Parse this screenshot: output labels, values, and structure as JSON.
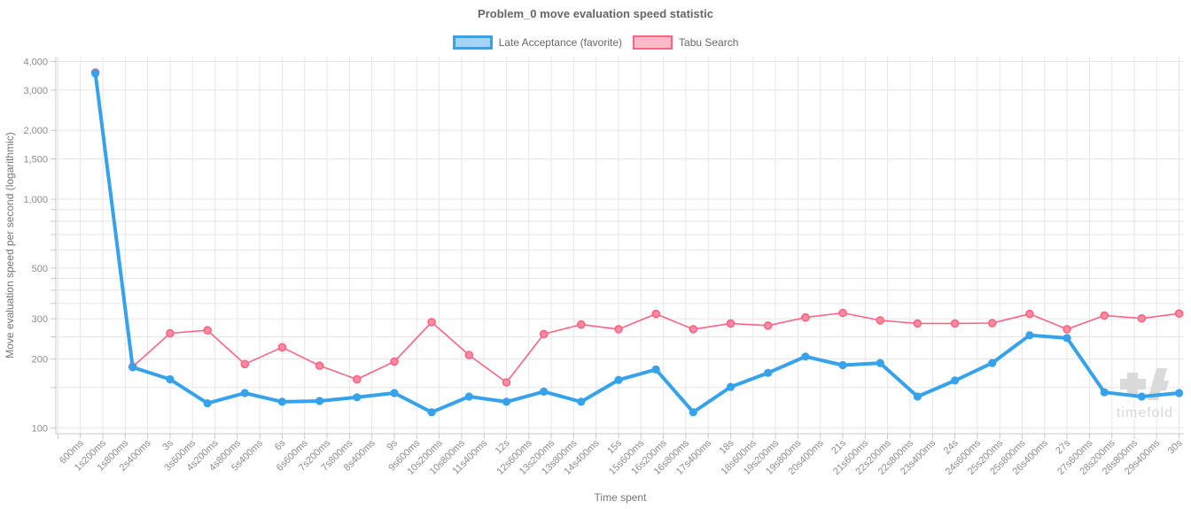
{
  "watermark": {
    "text": "timefold"
  },
  "legend": [
    {
      "label": "Late Acceptance (favorite)",
      "color": "#36A2EB",
      "fill": "rgba(54,162,235,0.45)",
      "border_width": 3
    },
    {
      "label": "Tabu Search",
      "color": "#FF6384",
      "fill": "rgba(255,99,132,0.45)",
      "border_width": 2
    }
  ],
  "chart_data": {
    "type": "line",
    "title": "Problem_0 move evaluation speed statistic",
    "xlabel": "Time spent",
    "ylabel": "Move evaluation speed per second (logarithmic)",
    "grid": true,
    "legend_position": "top",
    "x_axis": {
      "tick_interval_ms": 600,
      "range_ms": [
        0,
        30100
      ],
      "tick_labels": [
        "600ms",
        "1s200ms",
        "1s800ms",
        "2s400ms",
        "3s",
        "3s600ms",
        "4s200ms",
        "4s800ms",
        "5s400ms",
        "6s",
        "6s600ms",
        "7s200ms",
        "7s800ms",
        "8s400ms",
        "9s",
        "9s600ms",
        "10s200ms",
        "10s800ms",
        "11s400ms",
        "12s",
        "12s600ms",
        "13s200ms",
        "13s800ms",
        "14s400ms",
        "15s",
        "15s600ms",
        "16s200ms",
        "16s800ms",
        "17s400ms",
        "18s",
        "18s600ms",
        "19s200ms",
        "19s800ms",
        "20s400ms",
        "21s",
        "21s600ms",
        "22s200ms",
        "22s800ms",
        "23s400ms",
        "24s",
        "24s600ms",
        "25s200ms",
        "25s800ms",
        "26s400ms",
        "27s",
        "27s600ms",
        "28s200ms",
        "28s800ms",
        "29s400ms",
        "30s"
      ]
    },
    "y_axis": {
      "scale": "logarithmic",
      "range": [
        100,
        4000
      ],
      "labeled_ticks": [
        {
          "value": 4000,
          "label": "4,000"
        },
        {
          "value": 3000,
          "label": "3,000"
        },
        {
          "value": 2000,
          "label": "2,000"
        },
        {
          "value": 1500,
          "label": "1,500"
        },
        {
          "value": 1000,
          "label": "1,000"
        },
        {
          "value": 500,
          "label": "500"
        },
        {
          "value": 300,
          "label": "300"
        },
        {
          "value": 200,
          "label": "200"
        },
        {
          "value": 100,
          "label": "100"
        }
      ],
      "minor_gridlines": [
        900,
        800,
        700,
        600,
        450,
        400,
        350,
        250,
        150
      ]
    },
    "sample_interval_s": 1,
    "x_seconds": [
      1,
      2,
      3,
      4,
      5,
      6,
      7,
      8,
      9,
      10,
      11,
      12,
      13,
      14,
      15,
      16,
      17,
      18,
      19,
      20,
      21,
      22,
      23,
      24,
      25,
      26,
      27,
      28,
      29,
      30
    ],
    "series": [
      {
        "name": "Late Acceptance (favorite)",
        "color": "#36A2EB",
        "line_width": 4,
        "point_radius": 4.6,
        "point_fill": "#36A2EB",
        "point_border_width": 0,
        "values": [
          3550,
          184,
          163,
          128,
          142,
          130,
          131,
          136,
          142,
          117,
          137,
          130,
          144,
          130,
          162,
          180,
          117,
          151,
          174,
          205,
          188,
          192,
          137,
          161,
          192,
          254,
          247,
          143,
          137,
          142
        ]
      },
      {
        "name": "Tabu Search",
        "color": "#FF6384",
        "line_width": 1.6,
        "point_radius": 4,
        "point_fill": "#FB8CA0",
        "point_border_width": 1.6,
        "values": [
          3580,
          185,
          259,
          267,
          190,
          225,
          187,
          163,
          195,
          290,
          208,
          158,
          257,
          283,
          270,
          315,
          270,
          286,
          280,
          304,
          318,
          295,
          286,
          286,
          287,
          315,
          270,
          310,
          301,
          316
        ]
      }
    ]
  }
}
